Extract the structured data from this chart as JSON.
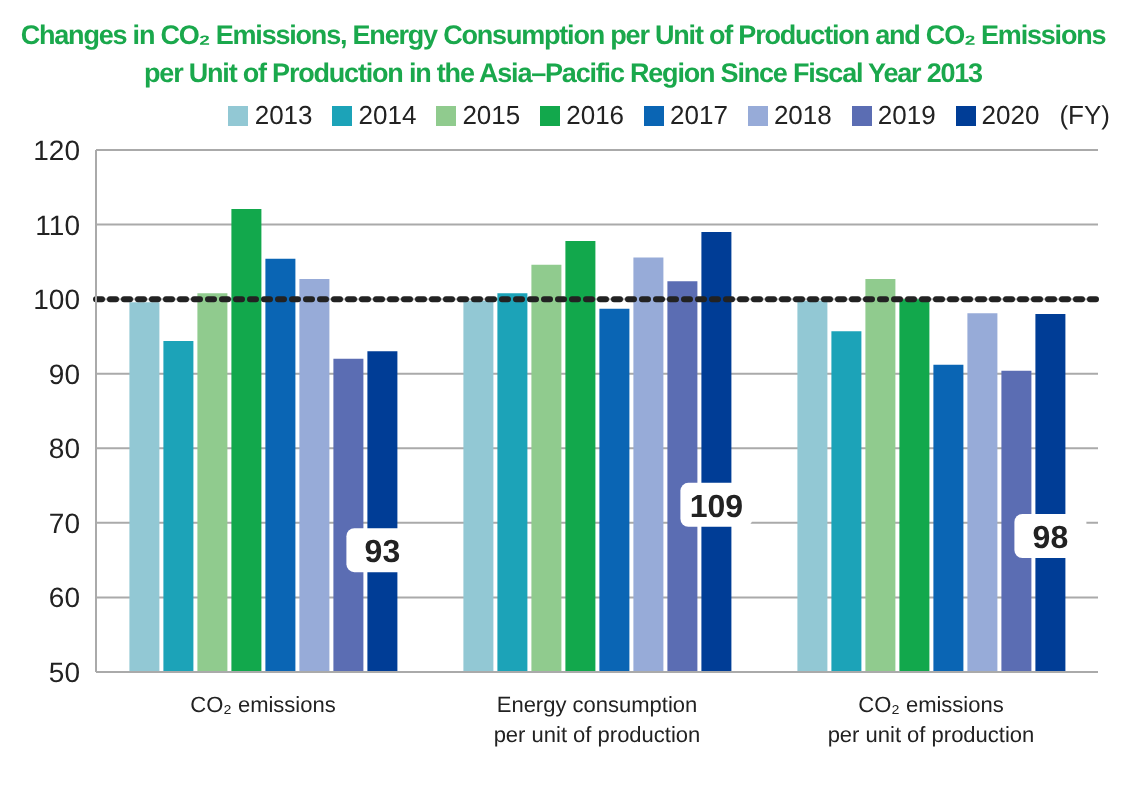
{
  "chart_data": {
    "type": "bar",
    "title": "Changes in CO₂ Emissions, Energy Consumption per Unit of Production and CO₂ Emissions per Unit of Production in the Asia–Pacific Region Since Fiscal Year 2013",
    "legend_title": "(FY)",
    "categories": [
      "CO₂ emissions",
      "Energy consumption\nper unit of production",
      "CO₂ emissions\nper unit of production"
    ],
    "series": [
      {
        "name": "2013",
        "color": "#92c8d4",
        "values": [
          99.6,
          99.8,
          99.8
        ]
      },
      {
        "name": "2014",
        "color": "#1ca3b8",
        "values": [
          94.4,
          100.8,
          95.7
        ]
      },
      {
        "name": "2015",
        "color": "#90cb8e",
        "values": [
          100.8,
          104.6,
          102.7
        ]
      },
      {
        "name": "2016",
        "color": "#12a84c",
        "values": [
          112.1,
          107.8,
          100
        ]
      },
      {
        "name": "2017",
        "color": "#0a65b4",
        "values": [
          105.4,
          98.7,
          91.2
        ]
      },
      {
        "name": "2018",
        "color": "#97abd8",
        "values": [
          102.7,
          105.6,
          98.1
        ]
      },
      {
        "name": "2019",
        "color": "#5b6db3",
        "values": [
          92,
          102.4,
          90.4
        ]
      },
      {
        "name": "2020",
        "color": "#003d96",
        "values": [
          93,
          109,
          98
        ],
        "value_labels": [
          "93",
          "109",
          "98"
        ]
      }
    ],
    "ylim": [
      50,
      120
    ],
    "yticks": [
      50,
      60,
      70,
      80,
      90,
      100,
      110,
      120
    ],
    "grid": "y",
    "legend": "top right",
    "ref_lines": [
      {
        "axis": "y",
        "value": 100,
        "color": "#222222",
        "line_style": "dotted"
      }
    ]
  }
}
